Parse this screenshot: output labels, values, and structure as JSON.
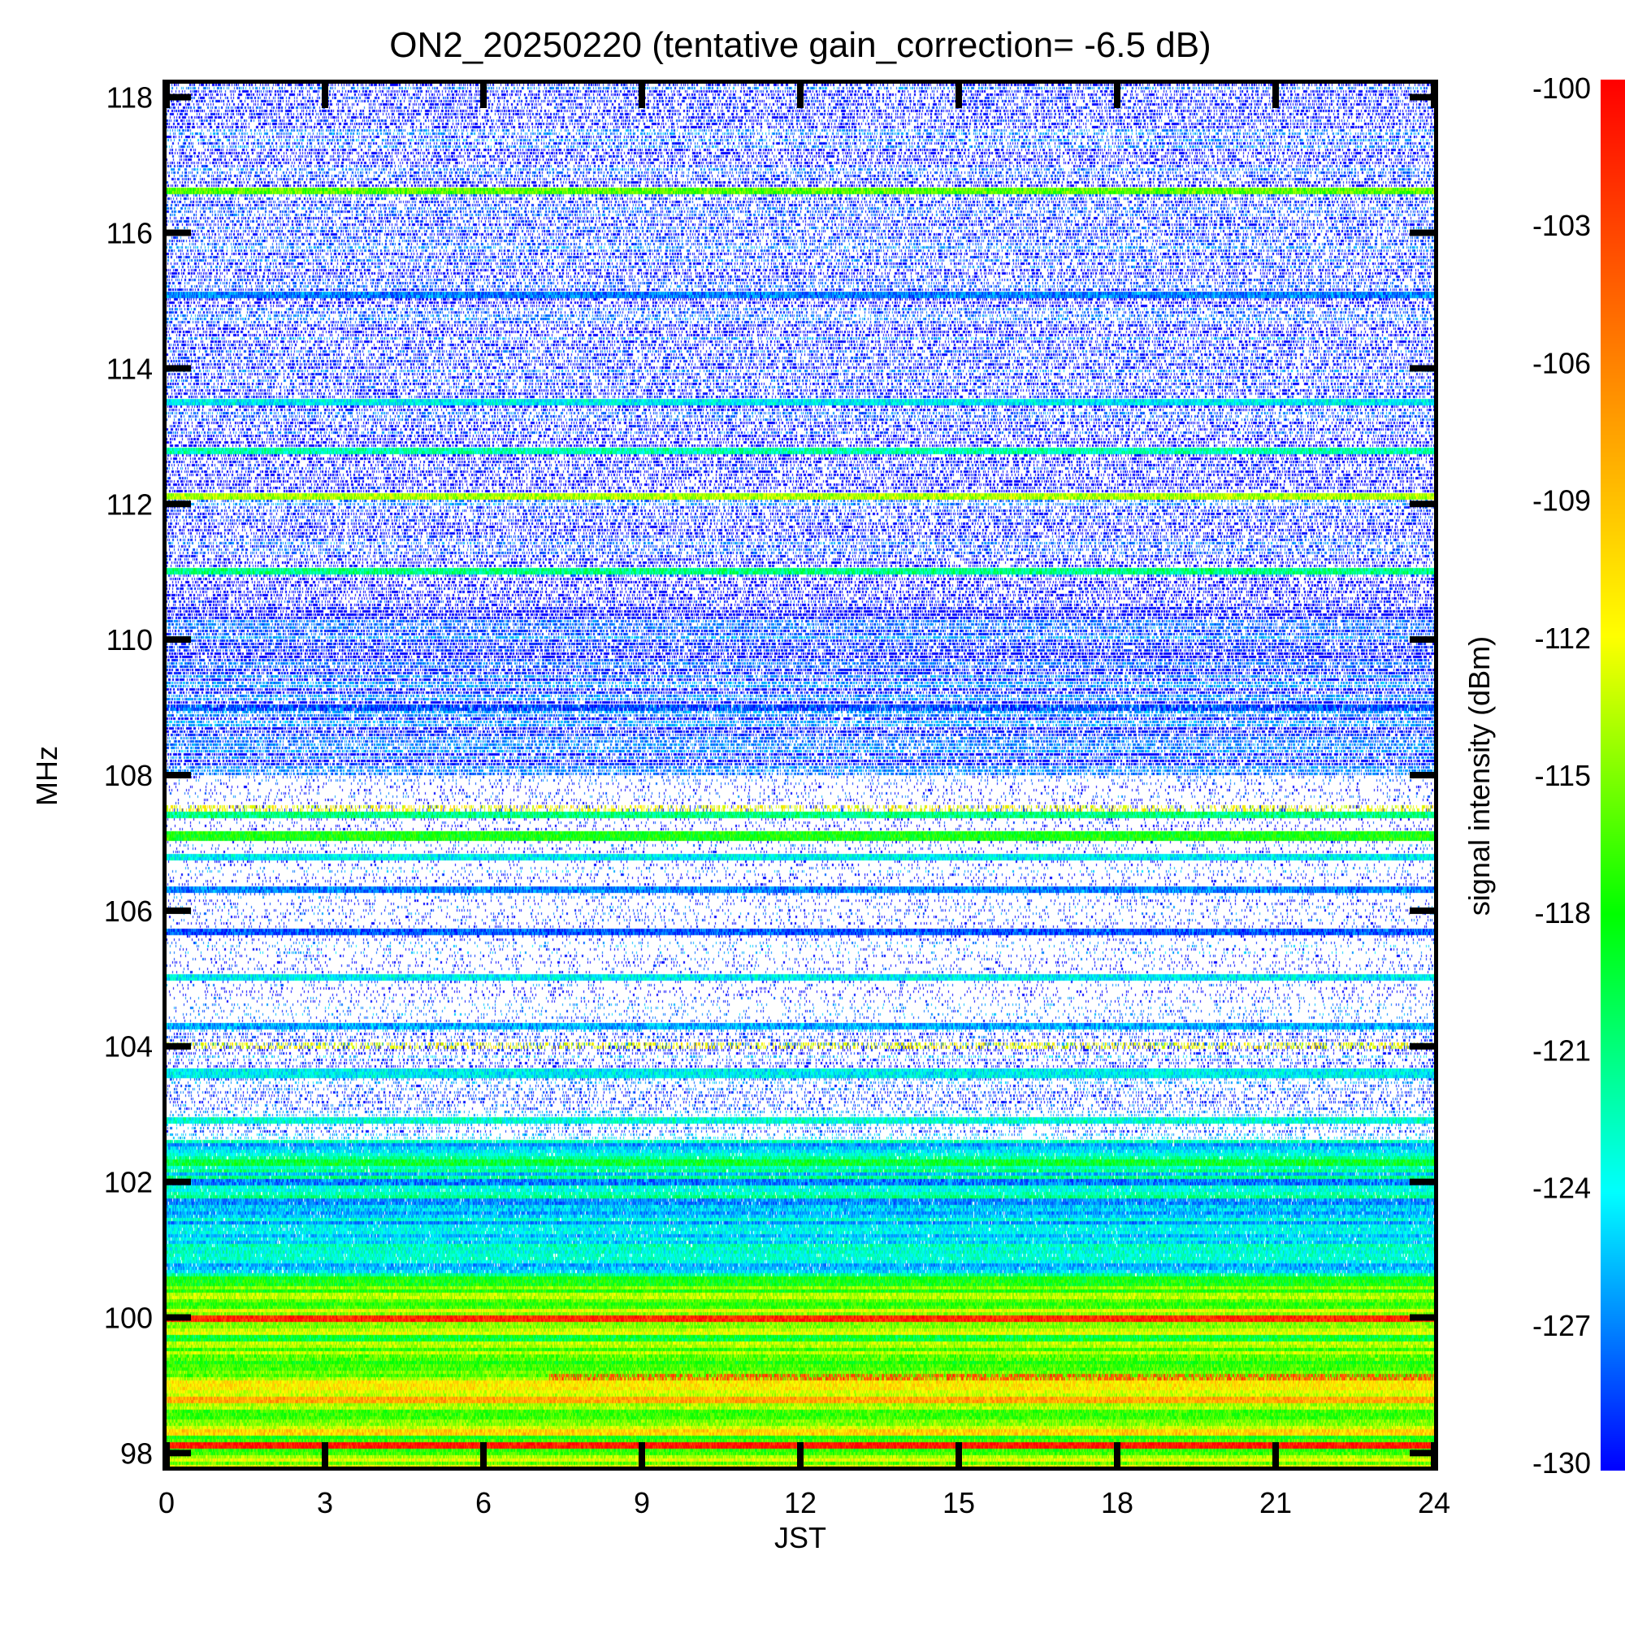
{
  "chart_data": {
    "type": "heatmap",
    "title": "ON2_20250220 (tentative gain_correction= -6.5 dB)",
    "xlabel": "JST",
    "ylabel": "MHz",
    "x_range": [
      0,
      24
    ],
    "y_range": [
      97.8,
      118.2
    ],
    "x_ticks": [
      "0",
      "3",
      "6",
      "9",
      "12",
      "15",
      "18",
      "21",
      "24"
    ],
    "y_ticks": [
      "98",
      "100",
      "102",
      "104",
      "106",
      "108",
      "110",
      "112",
      "114",
      "116",
      "118"
    ],
    "colorbar": {
      "label": "signal intensity (dBm)",
      "range": [
        -130,
        -100
      ],
      "ticks": [
        "-100",
        "-103",
        "-106",
        "-109",
        "-112",
        "-115",
        "-118",
        "-121",
        "-124",
        "-127",
        "-130"
      ],
      "colormap": [
        "#0000ff",
        "#00ffff",
        "#00ff00",
        "#ffff00",
        "#ff8000",
        "#ff0000"
      ],
      "scale": "linear"
    },
    "grid": false,
    "description_bands": [
      {
        "freq": 98.1,
        "level": -101,
        "pattern": "continuous"
      },
      {
        "freq": 98.3,
        "level": -110,
        "pattern": "continuous"
      },
      {
        "freq": 98.8,
        "level": -108,
        "pattern": "continuous"
      },
      {
        "freq": 99.0,
        "level": -111,
        "pattern": "continuous"
      },
      {
        "freq": 99.1,
        "level": -104,
        "pattern": "intermittent"
      },
      {
        "freq": 99.4,
        "level": -116,
        "pattern": "continuous"
      },
      {
        "freq": 99.7,
        "level": -119,
        "pattern": "continuous"
      },
      {
        "freq": 100.0,
        "level": -102,
        "pattern": "continuous"
      },
      {
        "freq": 100.5,
        "level": -118,
        "pattern": "continuous"
      },
      {
        "freq": 101.0,
        "level": -123,
        "pattern": "continuous"
      },
      {
        "freq": 101.6,
        "level": -125,
        "pattern": "continuous"
      },
      {
        "freq": 102.0,
        "level": -127,
        "pattern": "continuous"
      },
      {
        "freq": 102.3,
        "level": -119,
        "pattern": "continuous"
      },
      {
        "freq": 102.9,
        "level": -123,
        "pattern": "continuous"
      },
      {
        "freq": 103.6,
        "level": -124,
        "pattern": "continuous"
      },
      {
        "freq": 104.0,
        "level": -112,
        "pattern": "scattered"
      },
      {
        "freq": 104.3,
        "level": -126,
        "pattern": "continuous"
      },
      {
        "freq": 105.0,
        "level": -124,
        "pattern": "continuous"
      },
      {
        "freq": 105.7,
        "level": -128,
        "pattern": "continuous"
      },
      {
        "freq": 106.3,
        "level": -127,
        "pattern": "continuous"
      },
      {
        "freq": 106.8,
        "level": -124,
        "pattern": "continuous"
      },
      {
        "freq": 107.1,
        "level": -118,
        "pattern": "continuous"
      },
      {
        "freq": 107.4,
        "level": -121,
        "pattern": "continuous"
      },
      {
        "freq": 107.5,
        "level": -112,
        "pattern": "scattered"
      },
      {
        "freq": 109.0,
        "level": -128,
        "pattern": "dense"
      },
      {
        "freq": 111.0,
        "level": -121,
        "pattern": "continuous"
      },
      {
        "freq": 112.1,
        "level": -114,
        "pattern": "continuous"
      },
      {
        "freq": 112.8,
        "level": -122,
        "pattern": "continuous"
      },
      {
        "freq": 113.5,
        "level": -124,
        "pattern": "continuous"
      },
      {
        "freq": 115.1,
        "level": -127,
        "pattern": "continuous"
      },
      {
        "freq": 116.6,
        "level": -116,
        "pattern": "continuous"
      }
    ]
  }
}
